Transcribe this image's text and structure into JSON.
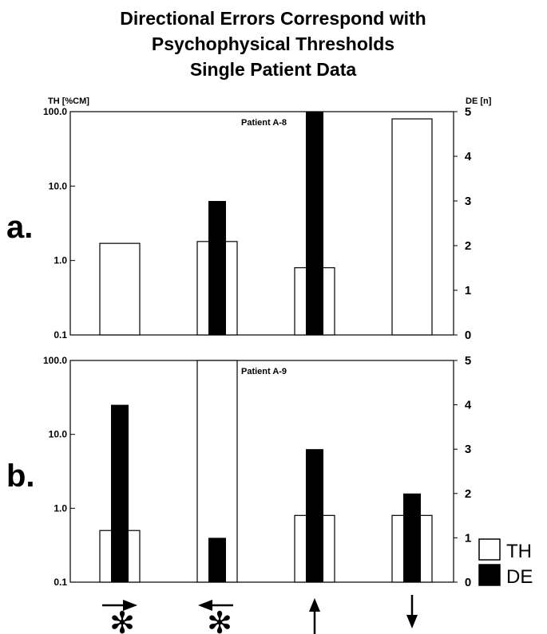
{
  "title_lines": [
    "Directional Errors Correspond with",
    "Psychophysical Thresholds",
    "Single Patient Data"
  ],
  "left_axis_label": "TH [%CM]",
  "right_axis_label": "DE [n]",
  "left_ticks": [
    "100.0",
    "10.0",
    "1.0",
    "0.1"
  ],
  "right_ticks": [
    "5",
    "4",
    "3",
    "2",
    "1",
    "0"
  ],
  "legend": [
    {
      "label": "TH",
      "fill": "#ffffff"
    },
    {
      "label": "DE",
      "fill": "#000000"
    }
  ],
  "directions": [
    {
      "icon": "arrow-right-icon",
      "starred": true
    },
    {
      "icon": "arrow-left-icon",
      "starred": true
    },
    {
      "icon": "arrow-up-icon",
      "starred": false
    },
    {
      "icon": "arrow-down-icon",
      "starred": false
    }
  ],
  "star_symbol": "✻",
  "chart_data": [
    {
      "type": "bar",
      "panel_label": "a.",
      "annotation": "Patient A-8",
      "categories": [
        "right",
        "left",
        "up",
        "down"
      ],
      "left_axis": {
        "label": "TH [%CM]",
        "scale": "log",
        "range": [
          0.1,
          100.0
        ]
      },
      "right_axis": {
        "label": "DE [n]",
        "scale": "linear",
        "range": [
          0,
          5
        ]
      },
      "series": [
        {
          "name": "TH",
          "axis": "left",
          "values": [
            1.7,
            1.8,
            0.8,
            80.0
          ]
        },
        {
          "name": "DE",
          "axis": "right",
          "values": [
            0,
            3,
            5,
            0
          ]
        }
      ]
    },
    {
      "type": "bar",
      "panel_label": "b.",
      "annotation": "Patient A-9",
      "categories": [
        "right",
        "left",
        "up",
        "down"
      ],
      "left_axis": {
        "label": "TH [%CM]",
        "scale": "log",
        "range": [
          0.1,
          100.0
        ]
      },
      "right_axis": {
        "label": "DE [n]",
        "scale": "linear",
        "range": [
          0,
          5
        ]
      },
      "series": [
        {
          "name": "TH",
          "axis": "left",
          "values": [
            0.5,
            100.0,
            0.8,
            0.8
          ]
        },
        {
          "name": "DE",
          "axis": "right",
          "values": [
            4,
            1,
            3,
            2
          ]
        }
      ]
    }
  ]
}
